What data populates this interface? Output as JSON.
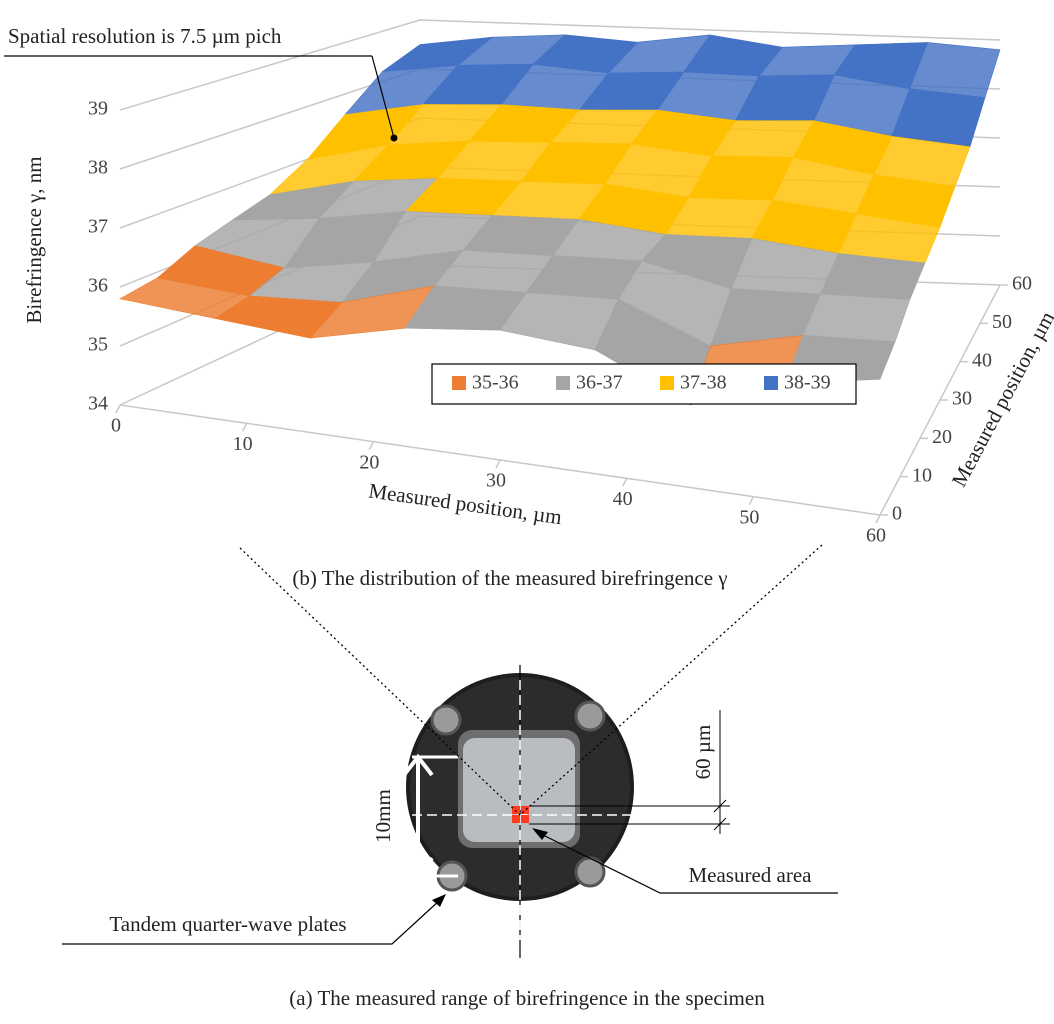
{
  "chart_data": {
    "type": "surface",
    "annotation": "Spatial resolution is 7.5 µm pich",
    "zlabel": "Birefringence γ, nm",
    "xlabel": "Measured position, µm",
    "ylabel": "Measured position, µm",
    "caption": "(b) The distribution of the measured birefringence γ",
    "x": [
      0,
      7.5,
      15,
      22.5,
      30,
      37.5,
      45,
      52.5,
      60
    ],
    "y": [
      0,
      7.5,
      15,
      22.5,
      30,
      37.5,
      45,
      52.5,
      60
    ],
    "z": [
      [
        35.8,
        35.7,
        35.6,
        36.0,
        36.2,
        36.1,
        35.4,
        36.0,
        36.3
      ],
      [
        35.9,
        35.8,
        35.9,
        36.4,
        36.5,
        36.6,
        36.0,
        36.4,
        36.5
      ],
      [
        36.2,
        36.0,
        36.3,
        36.7,
        36.8,
        36.9,
        36.6,
        36.7,
        36.8
      ],
      [
        36.4,
        36.6,
        36.9,
        37.0,
        37.1,
        37.0,
        37.1,
        37.0,
        37.0
      ],
      [
        36.6,
        37.0,
        37.2,
        37.3,
        37.4,
        37.3,
        37.4,
        37.3,
        37.2
      ],
      [
        37.0,
        37.4,
        37.6,
        37.7,
        37.8,
        37.7,
        37.8,
        37.6,
        37.5
      ],
      [
        37.6,
        37.9,
        38.0,
        38.0,
        38.1,
        38.0,
        38.1,
        37.9,
        37.8
      ],
      [
        38.2,
        38.4,
        38.5,
        38.4,
        38.5,
        38.5,
        38.6,
        38.4,
        38.3
      ],
      [
        38.5,
        38.7,
        38.8,
        38.7,
        38.9,
        38.7,
        38.8,
        38.9,
        38.8
      ]
    ],
    "bands": [
      {
        "label": "35-36",
        "min": 35,
        "max": 36,
        "color": "#ed7d31"
      },
      {
        "label": "36-37",
        "min": 36,
        "max": 37,
        "color": "#a5a5a5"
      },
      {
        "label": "37-38",
        "min": 37,
        "max": 38,
        "color": "#ffc000"
      },
      {
        "label": "38-39",
        "min": 38,
        "max": 39,
        "color": "#4472c4"
      }
    ],
    "xlim": [
      0,
      60
    ],
    "ylim": [
      0,
      60
    ],
    "zlim": [
      34,
      39
    ],
    "xticks": [
      0,
      10,
      20,
      30,
      40,
      50,
      60
    ],
    "yticks": [
      0,
      10,
      20,
      30,
      40,
      50,
      60
    ],
    "zticks": [
      34,
      35,
      36,
      37,
      38,
      39
    ],
    "grid": true
  },
  "photo": {
    "dimension_label": "10mm",
    "scale_label": "60 µm",
    "measured_area_label": "Measured area",
    "plates_label": "Tandem quarter-wave plates",
    "caption": "(a) The measured range of birefringence in the specimen"
  }
}
